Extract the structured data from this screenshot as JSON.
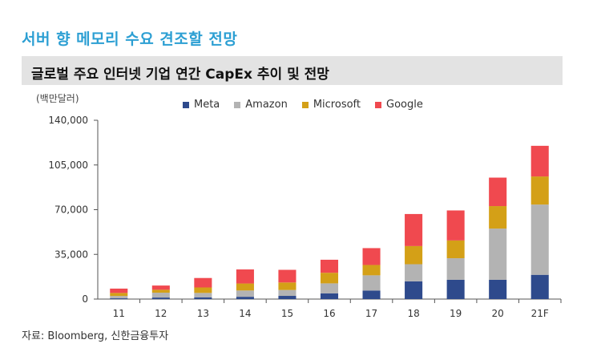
{
  "headline": "서버 향 메모리 수요 견조할 전망",
  "chart_title": "글로벌 주요 인터넷 기업 연간 CapEx 추이 및 전망",
  "source": "자료: Bloomberg, 신한금융투자",
  "colors": {
    "Meta": "#2e4a8c",
    "Amazon": "#b3b3b3",
    "Microsoft": "#d4a017",
    "Google": "#f0494f"
  },
  "chart_data": {
    "type": "bar",
    "stacked": true,
    "unit_label": "(백만달러)",
    "categories": [
      "11",
      "12",
      "13",
      "14",
      "15",
      "16",
      "17",
      "18",
      "19",
      "20",
      "21F"
    ],
    "series": [
      {
        "name": "Meta",
        "values": [
          600,
          1200,
          1400,
          1800,
          2500,
          4500,
          6700,
          13900,
          15100,
          15100,
          19000
        ]
      },
      {
        "name": "Amazon",
        "values": [
          1800,
          3800,
          3400,
          4900,
          4600,
          7800,
          11900,
          13400,
          16900,
          40100,
          55000
        ]
      },
      {
        "name": "Microsoft",
        "values": [
          2400,
          2300,
          4300,
          5500,
          5900,
          8300,
          8100,
          14200,
          13900,
          17600,
          22000
        ]
      },
      {
        "name": "Google",
        "values": [
          3400,
          3300,
          7400,
          11000,
          9900,
          10200,
          13200,
          25100,
          23500,
          22300,
          24000
        ]
      }
    ],
    "ylim": [
      0,
      140000
    ],
    "yticks": [
      "0",
      "35,000",
      "70,000",
      "105,000",
      "140,000"
    ],
    "ytick_values": [
      0,
      35000,
      70000,
      105000,
      140000
    ],
    "grid": false,
    "legend": "top"
  }
}
